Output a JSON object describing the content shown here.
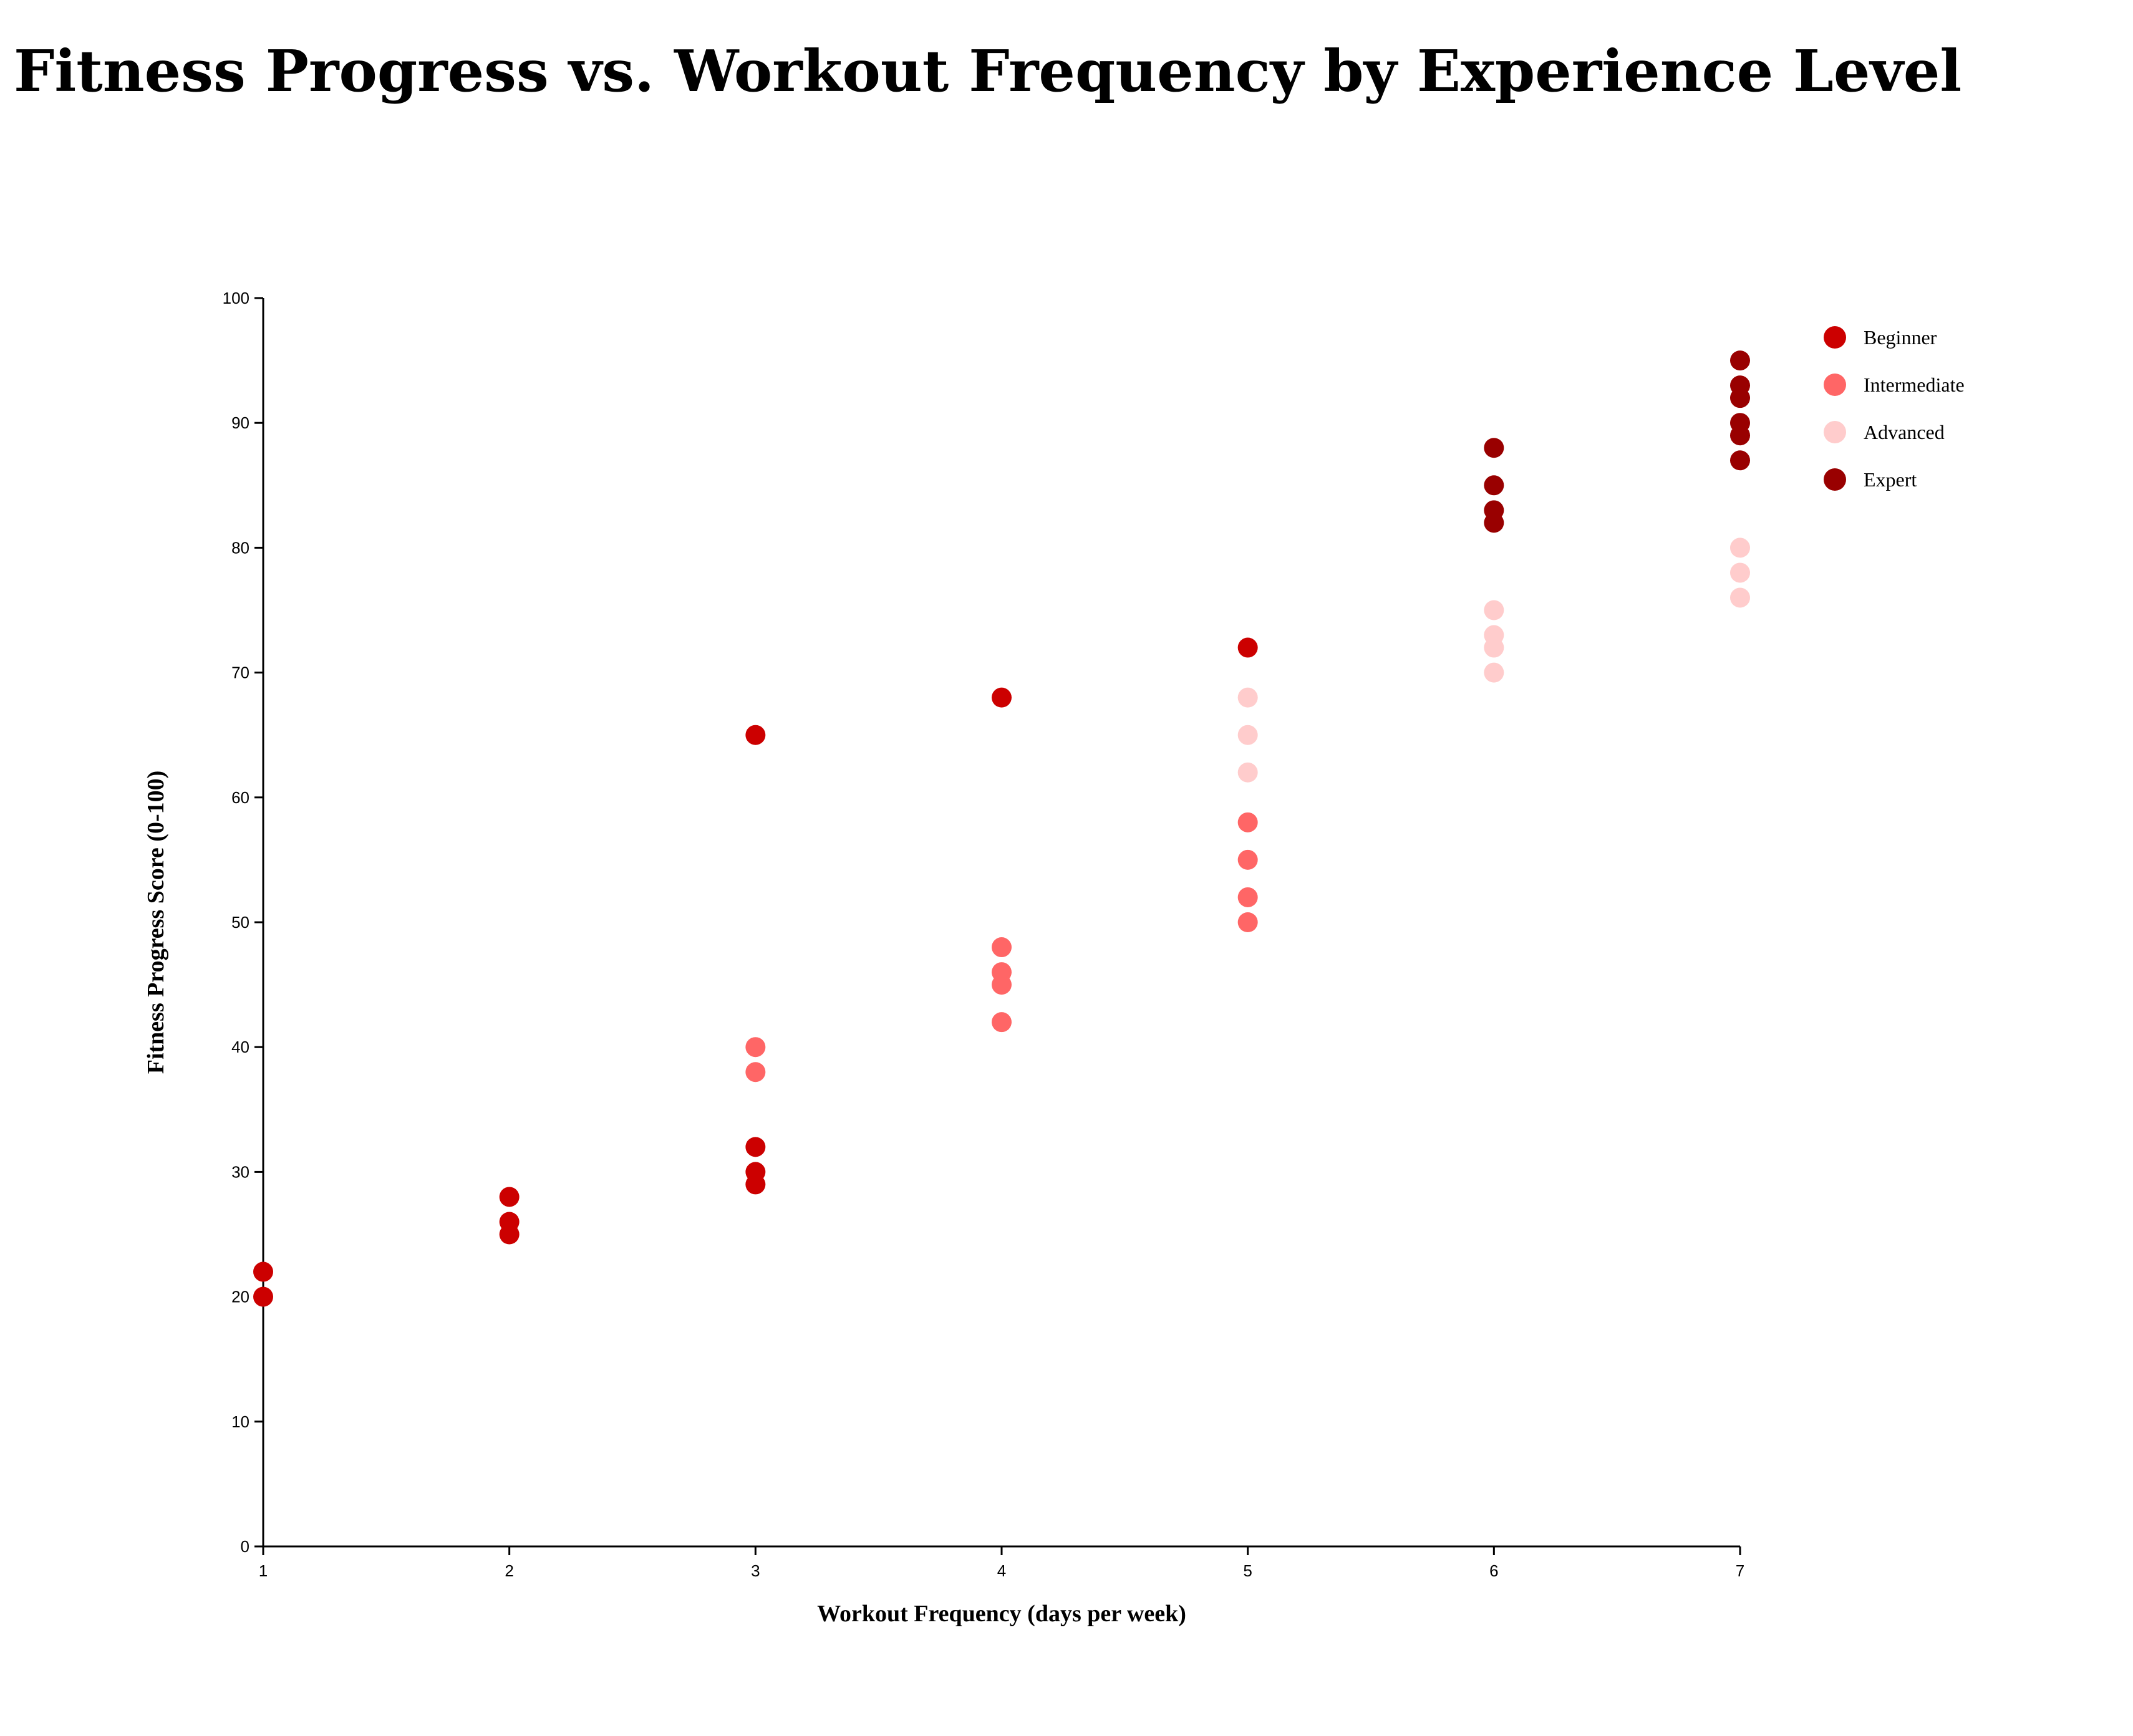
{
  "chart_data": {
    "type": "scatter",
    "title": "Fitness Progress vs. Workout Frequency by Experience Level",
    "xlabel": "Workout Frequency (days per week)",
    "ylabel": "Fitness Progress Score (0-100)",
    "xlim": [
      1,
      7
    ],
    "ylim": [
      0,
      100
    ],
    "x_ticks": [
      "1",
      "2",
      "3",
      "4",
      "5",
      "6",
      "7"
    ],
    "y_ticks": [
      "0",
      "10",
      "20",
      "30",
      "40",
      "50",
      "60",
      "70",
      "80",
      "90",
      "100"
    ],
    "grid": false,
    "legend_position": "top-right",
    "series": [
      {
        "name": "Beginner",
        "color": "#cc0000",
        "points": [
          {
            "x": 1,
            "y": 20
          },
          {
            "x": 1,
            "y": 22
          },
          {
            "x": 2,
            "y": 25
          },
          {
            "x": 2,
            "y": 26
          },
          {
            "x": 2,
            "y": 28
          },
          {
            "x": 3,
            "y": 29
          },
          {
            "x": 3,
            "y": 30
          },
          {
            "x": 3,
            "y": 32
          },
          {
            "x": 3,
            "y": 65
          },
          {
            "x": 4,
            "y": 68
          },
          {
            "x": 5,
            "y": 72
          }
        ]
      },
      {
        "name": "Intermediate",
        "color": "#ff6666",
        "points": [
          {
            "x": 3,
            "y": 38
          },
          {
            "x": 3,
            "y": 40
          },
          {
            "x": 4,
            "y": 42
          },
          {
            "x": 4,
            "y": 45
          },
          {
            "x": 4,
            "y": 46
          },
          {
            "x": 4,
            "y": 48
          },
          {
            "x": 5,
            "y": 50
          },
          {
            "x": 5,
            "y": 52
          },
          {
            "x": 5,
            "y": 55
          },
          {
            "x": 5,
            "y": 58
          }
        ]
      },
      {
        "name": "Advanced",
        "color": "#ffcccc",
        "points": [
          {
            "x": 5,
            "y": 62
          },
          {
            "x": 5,
            "y": 65
          },
          {
            "x": 5,
            "y": 68
          },
          {
            "x": 6,
            "y": 70
          },
          {
            "x": 6,
            "y": 72
          },
          {
            "x": 6,
            "y": 73
          },
          {
            "x": 6,
            "y": 75
          },
          {
            "x": 7,
            "y": 76
          },
          {
            "x": 7,
            "y": 78
          },
          {
            "x": 7,
            "y": 80
          }
        ]
      },
      {
        "name": "Expert",
        "color": "#990000",
        "points": [
          {
            "x": 6,
            "y": 82
          },
          {
            "x": 6,
            "y": 83
          },
          {
            "x": 6,
            "y": 85
          },
          {
            "x": 6,
            "y": 88
          },
          {
            "x": 7,
            "y": 87
          },
          {
            "x": 7,
            "y": 89
          },
          {
            "x": 7,
            "y": 90
          },
          {
            "x": 7,
            "y": 92
          },
          {
            "x": 7,
            "y": 93
          },
          {
            "x": 7,
            "y": 95
          }
        ]
      }
    ]
  }
}
